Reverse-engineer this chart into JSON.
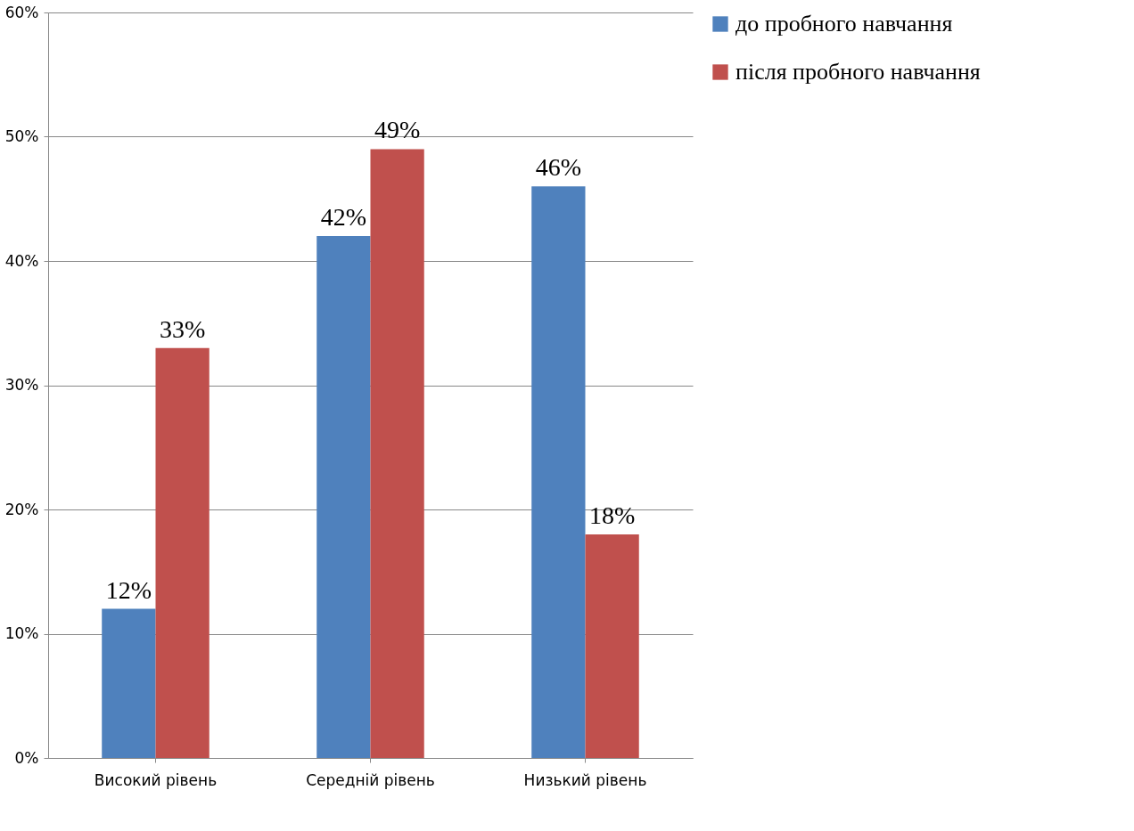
{
  "chart_data": {
    "type": "bar",
    "categories": [
      "Високий рівень",
      "Середній рівень",
      "Низький рівень"
    ],
    "series": [
      {
        "name": "до пробного навчання",
        "color": "#4f81bd",
        "values": [
          12,
          42,
          46
        ],
        "value_labels": [
          "12%",
          "42%",
          "46%"
        ]
      },
      {
        "name": "після пробного навчання",
        "color": "#c0504d",
        "values": [
          33,
          49,
          18
        ],
        "value_labels": [
          "33%",
          "49%",
          "18%"
        ]
      }
    ],
    "ylim": [
      0,
      60
    ],
    "yticks": [
      {
        "value": 0,
        "label": "0%"
      },
      {
        "value": 10,
        "label": "10%"
      },
      {
        "value": 20,
        "label": "20%"
      },
      {
        "value": 30,
        "label": "30%"
      },
      {
        "value": 40,
        "label": "40%"
      },
      {
        "value": 50,
        "label": "50%"
      },
      {
        "value": 60,
        "label": "60%"
      }
    ],
    "grid": "y",
    "legend": "right"
  }
}
